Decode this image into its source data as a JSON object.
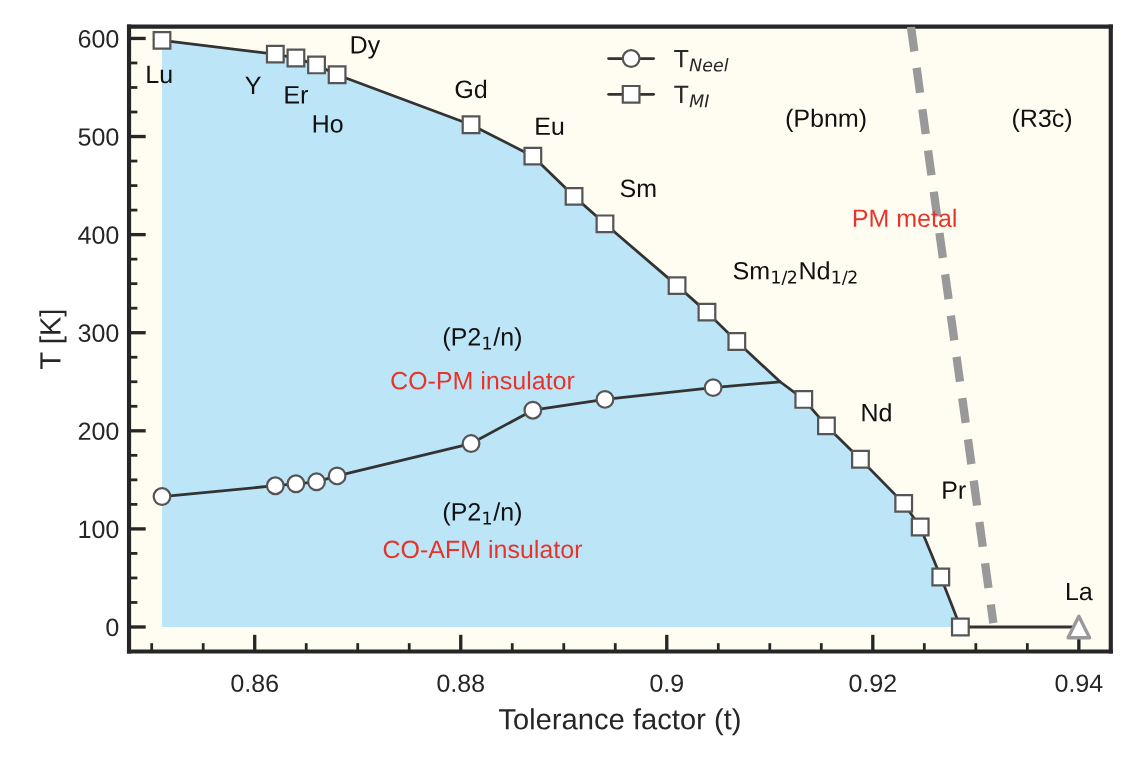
{
  "chart_data": {
    "type": "line",
    "xlabel": "Tolerance factor (t)",
    "ylabel": "T [K]",
    "xlim": [
      0.8478,
      0.9431
    ],
    "ylim": [
      -25,
      612
    ],
    "xticks": [
      {
        "value": 0.85,
        "label": null
      },
      {
        "value": 0.855,
        "label": null
      },
      0.86,
      {
        "value": 0.865,
        "label": null
      },
      {
        "value": 0.87,
        "label": null
      },
      {
        "value": 0.875,
        "label": null
      },
      0.88,
      {
        "value": 0.885,
        "label": null
      },
      {
        "value": 0.89,
        "label": null
      },
      {
        "value": 0.895,
        "label": null
      },
      0.9,
      {
        "value": 0.905,
        "label": null
      },
      {
        "value": 0.91,
        "label": null
      },
      {
        "value": 0.915,
        "label": null
      },
      0.92,
      {
        "value": 0.925,
        "label": null
      },
      {
        "value": 0.93,
        "label": null
      },
      {
        "value": 0.935,
        "label": null
      },
      0.94
    ],
    "yticks": [
      0,
      {
        "value": 25,
        "label": null
      },
      {
        "value": 50,
        "label": null
      },
      {
        "value": 75,
        "label": null
      },
      100,
      {
        "value": 125,
        "label": null
      },
      {
        "value": 150,
        "label": null
      },
      {
        "value": 175,
        "label": null
      },
      200,
      {
        "value": 225,
        "label": null
      },
      {
        "value": 250,
        "label": null
      },
      {
        "value": 275,
        "label": null
      },
      300,
      {
        "value": 325,
        "label": null
      },
      {
        "value": 350,
        "label": null
      },
      {
        "value": 375,
        "label": null
      },
      400,
      {
        "value": 425,
        "label": null
      },
      {
        "value": 450,
        "label": null
      },
      {
        "value": 475,
        "label": null
      },
      500,
      {
        "value": 525,
        "label": null
      },
      {
        "value": 550,
        "label": null
      },
      {
        "value": 575,
        "label": null
      },
      600
    ],
    "grid": false,
    "legend": "top",
    "series": [
      {
        "name": "T$_{Neel}$",
        "color": "#333333",
        "marker": "circle",
        "x": [
          0.851,
          0.862,
          0.864,
          0.866,
          0.868,
          0.881,
          0.887,
          0.894,
          0.9045,
          0.911
        ],
        "values": [
          133,
          144,
          146,
          148,
          154,
          187,
          221,
          232,
          244,
          250
        ]
      },
      {
        "name": "T$_{MI}$",
        "color": "#333333",
        "marker": "square",
        "x": [
          0.851,
          0.862,
          0.864,
          0.866,
          0.868,
          0.881,
          0.887,
          0.891,
          0.894,
          0.901,
          0.9039,
          0.9068,
          0.911,
          0.9133,
          0.9155,
          0.9188,
          0.923,
          0.9246,
          0.9266,
          0.9285,
          0.94
        ],
        "values": [
          598,
          584,
          580,
          573,
          563,
          512,
          480,
          439,
          411,
          348,
          321,
          291,
          250,
          232,
          205,
          171,
          126,
          102,
          51,
          0,
          0
        ]
      },
      {
        "type": "line",
        "color": "#999999",
        "marker": "none",
        "line_style": "dashed",
        "x": [
          0.9237,
          0.9317
        ],
        "values": [
          612,
          4
        ]
      },
      {
        "type": "scatter",
        "color": "#999999",
        "marker": "triangle",
        "x": [
          0.94
        ],
        "values": [
          0
        ]
      },
      {
        "type": "area",
        "color": "#bde5f8",
        "x": [
          0.851,
          0.862,
          0.864,
          0.866,
          0.868,
          0.881,
          0.887,
          0.891,
          0.894,
          0.901,
          0.9039,
          0.9068,
          0.911,
          0.9133,
          0.9155,
          0.9188,
          0.923,
          0.9246,
          0.9266,
          0.9285
        ],
        "values": [
          598,
          584,
          580,
          573,
          563,
          512,
          480,
          439,
          411,
          348,
          321,
          291,
          250,
          232,
          205,
          171,
          126,
          102,
          51,
          0
        ]
      }
    ],
    "annotations": [
      {
        "text": "Lu",
        "x": 0.851,
        "y": 598
      },
      {
        "text": "Y",
        "x": 0.862,
        "y": 584
      },
      {
        "text": "Er",
        "x": 0.864,
        "y": 580
      },
      {
        "text": "Ho",
        "x": 0.866,
        "y": 573
      },
      {
        "text": "Dy",
        "x": 0.868,
        "y": 563
      },
      {
        "text": "Gd",
        "x": 0.881,
        "y": 512
      },
      {
        "text": "Eu",
        "x": 0.887,
        "y": 480
      },
      {
        "text": "Sm",
        "x": 0.894,
        "y": 411
      },
      {
        "text": "Sm$_{1/2}$Nd$_{1/2}$",
        "x": 0.9039,
        "y": 321
      },
      {
        "text": "Nd",
        "x": 0.9155,
        "y": 205
      },
      {
        "text": "Pr",
        "x": 0.923,
        "y": 126
      },
      {
        "text": "La",
        "x": 0.94,
        "y": 0
      },
      "(P2$_{1}$/n)",
      "CO-PM insulator",
      "(P2$_{1}$/n)",
      "CO-AFM insulator",
      "(Pbnm)",
      "(R3̄c)",
      "PM metal"
    ]
  }
}
